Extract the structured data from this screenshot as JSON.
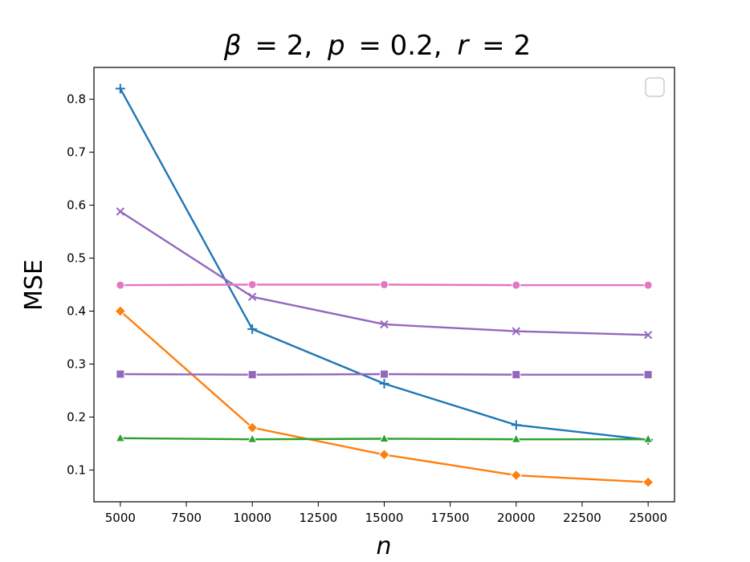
{
  "chart_data": {
    "type": "line",
    "title": {
      "beta_symbol": "β",
      "beta_value": "= 2,",
      "p_symbol": "p",
      "p_value": "= 0.2,",
      "r_symbol": "r",
      "r_value": "= 2"
    },
    "xlabel": "n",
    "ylabel": "MSE",
    "x": [
      5000,
      10000,
      15000,
      20000,
      25000
    ],
    "xlim": [
      4000,
      26000
    ],
    "ylim": [
      0.04,
      0.86
    ],
    "xticks": [
      5000,
      7500,
      10000,
      12500,
      15000,
      17500,
      20000,
      22500,
      25000
    ],
    "yticks": [
      0.1,
      0.2,
      0.3,
      0.4,
      0.5,
      0.6,
      0.7,
      0.8
    ],
    "legend": {
      "placement": "top-right",
      "entries": []
    },
    "grid": false,
    "series": [
      {
        "marker": "plus",
        "color": "#1f77b4",
        "values": [
          0.82,
          0.366,
          0.263,
          0.185,
          0.157
        ]
      },
      {
        "marker": "x",
        "color": "#9467bd",
        "values": [
          0.588,
          0.427,
          0.375,
          0.362,
          0.355
        ]
      },
      {
        "marker": "circle",
        "color": "#e377c2",
        "values": [
          0.449,
          0.45,
          0.45,
          0.449,
          0.449
        ]
      },
      {
        "marker": "diamond",
        "color": "#ff7f0e",
        "values": [
          0.4,
          0.18,
          0.129,
          0.09,
          0.077
        ]
      },
      {
        "marker": "square",
        "color": "#9467bd",
        "values": [
          0.281,
          0.28,
          0.281,
          0.28,
          0.28
        ]
      },
      {
        "marker": "triangle",
        "color": "#2ca02c",
        "values": [
          0.16,
          0.158,
          0.159,
          0.158,
          0.158
        ]
      }
    ]
  }
}
